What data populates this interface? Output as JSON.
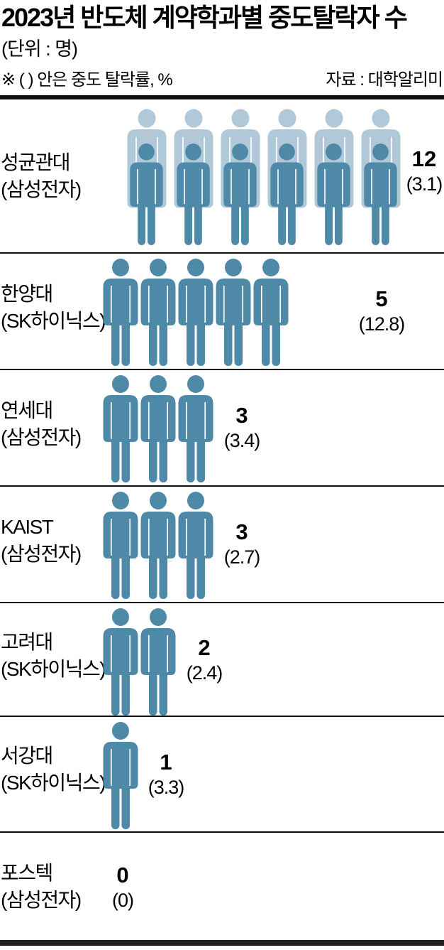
{
  "header": {
    "title": "2023년 반도체 계약학과별 중도탈락자 수",
    "unit_label": "(단위 : 명)",
    "note": "※ (  ) 안은 중도 탈락률, %",
    "source": "자료 : 대학알리미"
  },
  "colors": {
    "person_front": "#4e89a8",
    "person_back": "#b1c8d9",
    "divider": "#0f0f0f",
    "bottom_bar": "#251d1b",
    "text": "#000000"
  },
  "chart_data": {
    "type": "bar",
    "subtype": "pictogram",
    "title": "2023년 반도체 계약학과별 중도탈락자 수",
    "unit": "명",
    "note": "(  ) 안은 중도 탈락률, %",
    "source": "대학알리미",
    "icon_represents": 1,
    "categories": [
      "성균관대",
      "한양대",
      "연세대",
      "KAIST",
      "고려대",
      "서강대",
      "포스텍"
    ],
    "values": [
      12,
      5,
      3,
      3,
      2,
      1,
      0
    ],
    "rates_percent": [
      3.1,
      12.8,
      3.4,
      2.7,
      2.4,
      3.3,
      0
    ],
    "rows": [
      {
        "university": "성균관대",
        "company_label": "(삼성전자)",
        "dropouts": 12,
        "rate_label": "(3.1)",
        "rate": 3.1
      },
      {
        "university": "한양대",
        "company_label": "(SK하이닉스)",
        "dropouts": 5,
        "rate_label": "(12.8)",
        "rate": 12.8
      },
      {
        "university": "연세대",
        "company_label": "(삼성전자)",
        "dropouts": 3,
        "rate_label": "(3.4)",
        "rate": 3.4
      },
      {
        "university": "KAIST",
        "company_label": "(삼성전자)",
        "dropouts": 3,
        "rate_label": "(2.7)",
        "rate": 2.7
      },
      {
        "university": "고려대",
        "company_label": "(SK하이닉스)",
        "dropouts": 2,
        "rate_label": "(2.4)",
        "rate": 2.4
      },
      {
        "university": "서강대",
        "company_label": "(SK하이닉스)",
        "dropouts": 1,
        "rate_label": "(3.3)",
        "rate": 3.3
      },
      {
        "university": "포스텍",
        "company_label": "(삼성전자)",
        "dropouts": 0,
        "rate_label": "(0)",
        "rate": 0
      }
    ]
  }
}
